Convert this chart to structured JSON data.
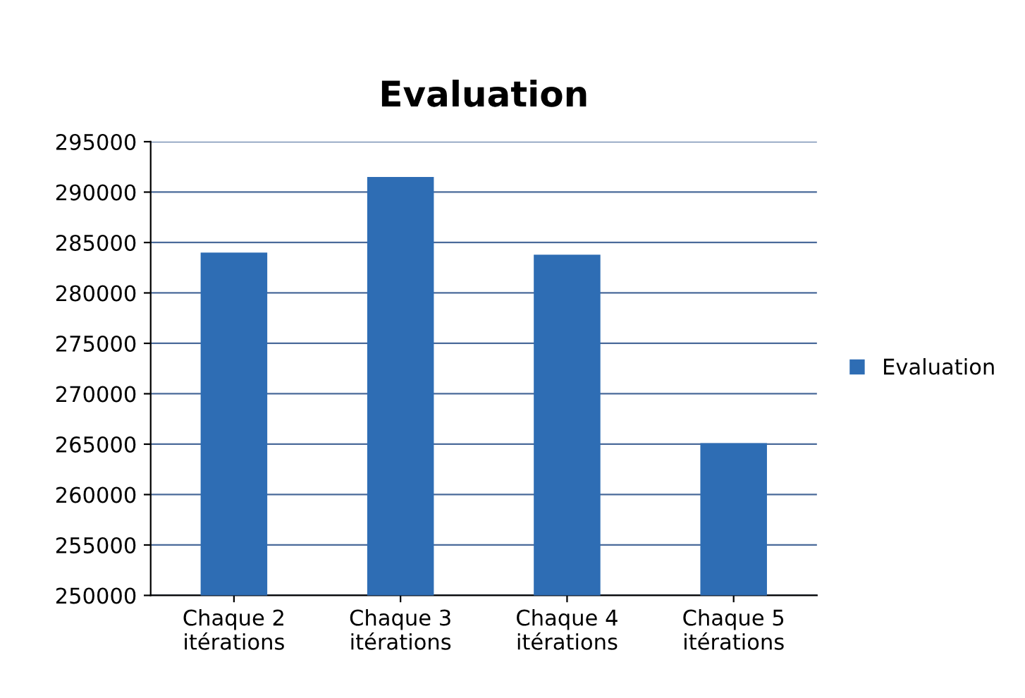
{
  "chart_data": {
    "type": "bar",
    "title": "Evaluation",
    "categories": [
      "Chaque 2\nitérations",
      "Chaque 3\nitérations",
      "Chaque 4\nitérations",
      "Chaque 5\nitérations"
    ],
    "series": [
      {
        "name": "Evaluation",
        "color": "#2e6db4",
        "values": [
          284000,
          291500,
          283800,
          265100
        ]
      }
    ],
    "ylim": [
      250000,
      295000
    ],
    "yticks": [
      250000,
      255000,
      260000,
      265000,
      270000,
      275000,
      280000,
      285000,
      290000,
      295000
    ],
    "grid": "y",
    "legend": "right"
  }
}
